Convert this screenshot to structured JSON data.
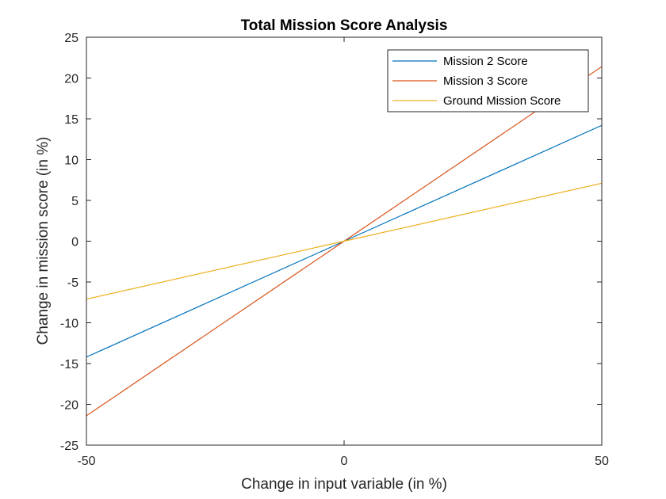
{
  "chart_data": {
    "type": "line",
    "title": "Total Mission Score Analysis",
    "xlabel": "Change in input variable (in %)",
    "ylabel": "Change in mission score (in %)",
    "xlim": [
      -50,
      50
    ],
    "ylim": [
      -25,
      25
    ],
    "x_ticks": [
      -50,
      0,
      50
    ],
    "x_tick_labels": [
      "-50",
      "0",
      "50"
    ],
    "y_ticks": [
      -25,
      -20,
      -15,
      -10,
      -5,
      0,
      5,
      10,
      15,
      20,
      25
    ],
    "y_tick_labels": [
      "-25",
      "-20",
      "-15",
      "-10",
      "-5",
      "0",
      "5",
      "10",
      "15",
      "20",
      "25"
    ],
    "grid": false,
    "legend_position": "top-right",
    "series": [
      {
        "name": "Mission 2 Score",
        "color": "#0072BD",
        "x": [
          -50,
          0,
          50
        ],
        "y": [
          -14.2,
          0,
          14.2
        ]
      },
      {
        "name": "Mission 3 Score",
        "color": "#D95319",
        "x": [
          -50,
          0,
          50
        ],
        "y": [
          -21.4,
          0,
          21.4
        ]
      },
      {
        "name": "Ground Mission Score",
        "color": "#EDB120",
        "x": [
          -50,
          0,
          50
        ],
        "y": [
          -7.1,
          0,
          7.1
        ]
      }
    ]
  }
}
